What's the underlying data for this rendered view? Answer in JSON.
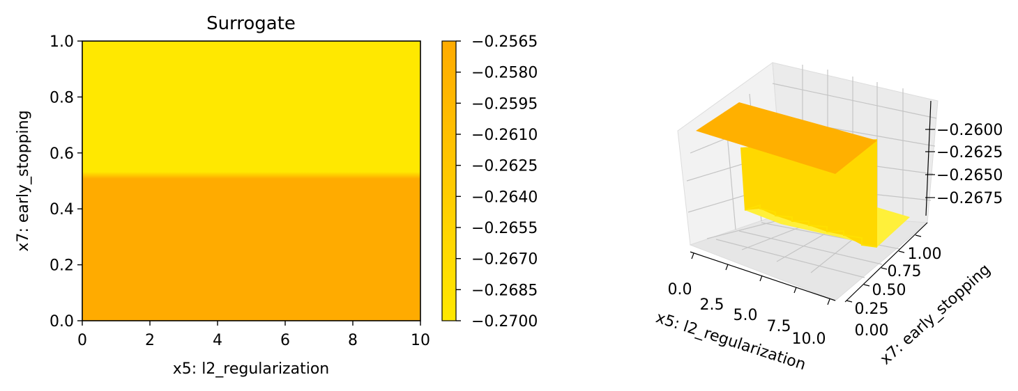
{
  "chart_data": [
    {
      "type": "heatmap",
      "title": "Surrogate",
      "xlabel": "x5: l2_regularization",
      "ylabel": "x7: early_stopping",
      "xlim": [
        0,
        10
      ],
      "ylim": [
        0,
        1
      ],
      "xticks": [
        0,
        2,
        4,
        6,
        8,
        10
      ],
      "xtick_labels": [
        "0",
        "2",
        "4",
        "6",
        "8",
        "10"
      ],
      "yticks": [
        0.0,
        0.2,
        0.4,
        0.6,
        0.8,
        1.0
      ],
      "ytick_labels": [
        "0.0",
        "0.2",
        "0.4",
        "0.6",
        "0.8",
        "1.0"
      ],
      "regions": [
        {
          "y_range": [
            0.0,
            0.52
          ],
          "value": -0.2565
        },
        {
          "y_range": [
            0.52,
            1.0
          ],
          "value": -0.27
        }
      ],
      "transition_y": 0.52,
      "colorbar": {
        "min": -0.27,
        "max": -0.2565,
        "ticks": [
          -0.2565,
          -0.258,
          -0.2595,
          -0.261,
          -0.2625,
          -0.264,
          -0.2655,
          -0.267,
          -0.2685,
          -0.27
        ],
        "tick_labels": [
          "−0.2565",
          "−0.2580",
          "−0.2595",
          "−0.2610",
          "−0.2625",
          "−0.2640",
          "−0.2655",
          "−0.2670",
          "−0.2685",
          "−0.2700"
        ],
        "color_low": "#ffe800",
        "color_high": "#ffab00"
      }
    },
    {
      "type": "surface3d",
      "xlabel": "x5: l2_regularization",
      "ylabel": "x7: early_stopping",
      "xtick_labels": [
        "0.0",
        "2.5",
        "5.0",
        "7.5",
        "10.0"
      ],
      "ytick_labels": [
        "0.00",
        "0.25",
        "0.50",
        "0.75",
        "1.00"
      ],
      "ztick_labels": [
        "−0.2600",
        "−0.2625",
        "−0.2650",
        "−0.2675"
      ],
      "surface_colors": {
        "top": "#ffb000",
        "wall": "#ffd800",
        "low": "#fff03a"
      }
    }
  ]
}
